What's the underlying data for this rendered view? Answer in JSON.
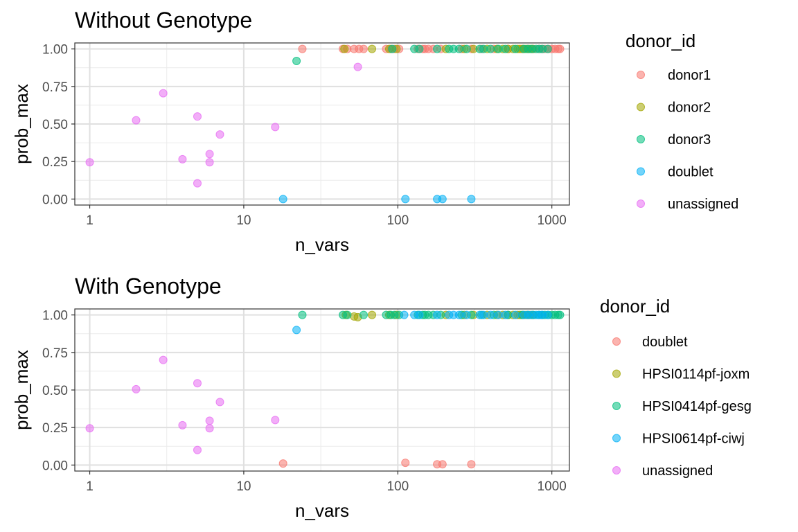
{
  "chart_data": [
    {
      "type": "scatter",
      "title": "Without Genotype",
      "xlabel": "n_vars",
      "ylabel": "prob_max",
      "x_scale": "log10",
      "xlim": [
        0.8,
        1300
      ],
      "ylim": [
        -0.04,
        1.04
      ],
      "x_ticks": [
        1,
        10,
        100,
        1000
      ],
      "x_tick_labels": [
        "1",
        "10",
        "100",
        "1000"
      ],
      "y_ticks": [
        0,
        0.25,
        0.5,
        0.75,
        1
      ],
      "y_tick_labels": [
        "0.00",
        "0.25",
        "0.50",
        "0.75",
        "1.00"
      ],
      "grid": true,
      "legend_title": "donor_id",
      "legend_position": "right",
      "series": [
        {
          "name": "donor1",
          "color": "#F8766D",
          "x": [
            24,
            44,
            47,
            52,
            56,
            60,
            84,
            90,
            95,
            102,
            135,
            145,
            150,
            158,
            170,
            190,
            260,
            300,
            350,
            420,
            520,
            640,
            700,
            760,
            820,
            860,
            900,
            950,
            1000,
            1050,
            1100,
            1130
          ],
          "y": [
            1,
            1,
            1,
            1,
            1,
            1,
            1,
            1,
            1,
            1,
            1,
            1,
            1,
            1,
            1,
            1,
            1,
            1,
            1,
            1,
            1,
            1,
            1,
            1,
            1,
            1,
            1,
            1,
            1,
            1,
            1,
            1
          ]
        },
        {
          "name": "donor2",
          "color": "#A3A500",
          "x": [
            45,
            68,
            88,
            98,
            205,
            270,
            310,
            380,
            440,
            480,
            520,
            560,
            600,
            620,
            650,
            680,
            720,
            750
          ],
          "y": [
            1,
            1,
            1,
            1,
            1,
            1,
            1,
            1,
            1,
            1,
            1,
            1,
            1,
            1,
            1,
            1,
            1,
            1
          ]
        },
        {
          "name": "donor3",
          "color": "#00BF7D",
          "x": [
            22,
            92,
            128,
            138,
            180,
            215,
            230,
            250,
            280,
            340,
            360,
            400,
            450,
            500,
            580,
            660,
            700,
            740,
            790,
            830,
            870,
            940
          ],
          "y": [
            0.92,
            1,
            1,
            1,
            1,
            1,
            1,
            1,
            1,
            1,
            1,
            1,
            1,
            1,
            1,
            1,
            1,
            1,
            1,
            1,
            1,
            1
          ]
        },
        {
          "name": "doublet",
          "color": "#00B0F6",
          "x": [
            18,
            112,
            180,
            195,
            300
          ],
          "y": [
            0,
            0,
            0,
            0,
            0
          ]
        },
        {
          "name": "unassigned",
          "color": "#E76BF3",
          "x": [
            1,
            2,
            3,
            4,
            5,
            5,
            6,
            6,
            7,
            16,
            55
          ],
          "y": [
            0.245,
            0.525,
            0.705,
            0.265,
            0.55,
            0.105,
            0.3,
            0.245,
            0.43,
            0.48,
            0.88
          ]
        }
      ]
    },
    {
      "type": "scatter",
      "title": "With Genotype",
      "xlabel": "n_vars",
      "ylabel": "prob_max",
      "x_scale": "log10",
      "xlim": [
        0.8,
        1300
      ],
      "ylim": [
        -0.04,
        1.04
      ],
      "x_ticks": [
        1,
        10,
        100,
        1000
      ],
      "x_tick_labels": [
        "1",
        "10",
        "100",
        "1000"
      ],
      "y_ticks": [
        0,
        0.25,
        0.5,
        0.75,
        1
      ],
      "y_tick_labels": [
        "0.00",
        "0.25",
        "0.50",
        "0.75",
        "1.00"
      ],
      "grid": true,
      "legend_title": "donor_id",
      "legend_position": "right",
      "series": [
        {
          "name": "doublet",
          "color": "#F8766D",
          "x": [
            18,
            112,
            180,
            195,
            300
          ],
          "y": [
            0.01,
            0.015,
            0.005,
            0.005,
            0.005
          ]
        },
        {
          "name": "HPSI0114pf-joxm",
          "color": "#A3A500",
          "x": [
            46,
            52,
            55,
            68,
            88,
            98,
            205,
            270,
            310,
            380,
            440,
            480,
            520,
            560,
            600,
            620,
            650,
            680,
            720,
            750
          ],
          "y": [
            1,
            0.99,
            0.985,
            1,
            1,
            1,
            1,
            1,
            1,
            1,
            1,
            1,
            1,
            1,
            1,
            1,
            1,
            1,
            1,
            1
          ]
        },
        {
          "name": "HPSI0414pf-gesg",
          "color": "#00BF7D",
          "x": [
            24,
            44,
            47,
            60,
            84,
            90,
            95,
            102,
            135,
            145,
            150,
            158,
            170,
            190,
            260,
            300,
            350,
            420,
            520,
            640,
            700,
            760,
            820,
            860,
            900,
            950,
            1000,
            1050,
            1100,
            1130
          ],
          "y": [
            1,
            1,
            1,
            1,
            1,
            1,
            1,
            1,
            1,
            1,
            1,
            1,
            1,
            1,
            1,
            1,
            1,
            1,
            1,
            1,
            1,
            1,
            1,
            1,
            1,
            1,
            1,
            1,
            1,
            1
          ]
        },
        {
          "name": "HPSI0614pf-ciwj",
          "color": "#00B0F6",
          "x": [
            22,
            110,
            128,
            138,
            180,
            215,
            230,
            250,
            280,
            340,
            360,
            400,
            450,
            500,
            580,
            660,
            700,
            740,
            790,
            830,
            870,
            940
          ],
          "y": [
            0.9,
            1,
            1,
            1,
            1,
            1,
            1,
            1,
            1,
            1,
            1,
            1,
            1,
            1,
            1,
            1,
            1,
            1,
            1,
            1,
            1,
            1
          ]
        },
        {
          "name": "unassigned",
          "color": "#E76BF3",
          "x": [
            1,
            2,
            3,
            4,
            5,
            5,
            6,
            6,
            7,
            16
          ],
          "y": [
            0.245,
            0.505,
            0.7,
            0.265,
            0.545,
            0.1,
            0.295,
            0.245,
            0.42,
            0.3
          ]
        }
      ]
    }
  ]
}
